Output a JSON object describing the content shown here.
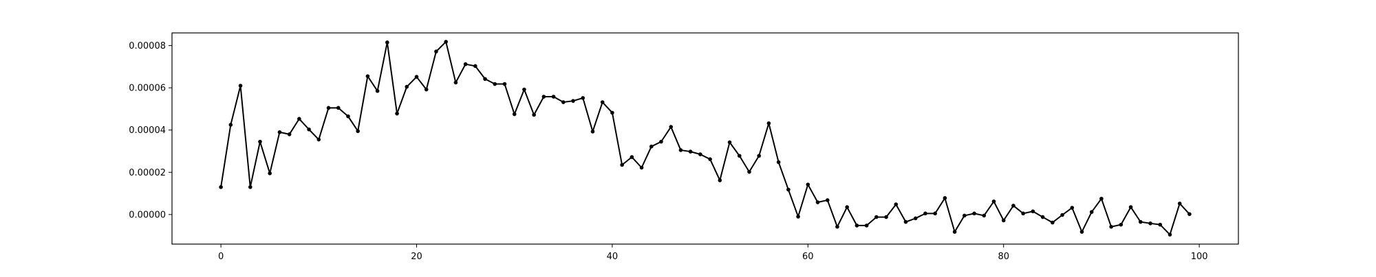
{
  "chart_data": {
    "type": "line",
    "title": "",
    "xlabel": "",
    "ylabel": "",
    "xlim": [
      -5,
      104
    ],
    "ylim": [
      -1.4e-05,
      8.6e-05
    ],
    "x_ticks": [
      0,
      20,
      40,
      60,
      80,
      100
    ],
    "x_tick_labels": [
      "0",
      "20",
      "40",
      "60",
      "80",
      "100"
    ],
    "y_ticks": [
      0.0,
      2e-05,
      4e-05,
      6e-05,
      8e-05
    ],
    "y_tick_labels": [
      "0.00000",
      "0.00002",
      "0.00004",
      "0.00006",
      "0.00008"
    ],
    "grid": false,
    "legend": "none",
    "line_color": "#000000",
    "series": [
      {
        "x": [
          0,
          1,
          2,
          3,
          4,
          5,
          6,
          7,
          8,
          9,
          10,
          11,
          12,
          13,
          14,
          15,
          16,
          17,
          18,
          19,
          20,
          21,
          22,
          23,
          24,
          25,
          26,
          27,
          28,
          29,
          30,
          31,
          32,
          33,
          34,
          35,
          36,
          37,
          38,
          39,
          40,
          41,
          42,
          43,
          44,
          45,
          46,
          47,
          48,
          49,
          50,
          51,
          52,
          53,
          54,
          55,
          56,
          57,
          58,
          59,
          60,
          61,
          62,
          63,
          64,
          65,
          66,
          67,
          68,
          69,
          70,
          71,
          72,
          73,
          74,
          75,
          76,
          77,
          78,
          79,
          80,
          81,
          82,
          83,
          84,
          85,
          86,
          87,
          88,
          89,
          90,
          91,
          92,
          93,
          94,
          95,
          96,
          97,
          98,
          99
        ],
        "values": [
          1.3e-05,
          4.25e-05,
          6.1e-05,
          1.3e-05,
          3.45e-05,
          1.95e-05,
          3.9e-05,
          3.8e-05,
          4.53e-05,
          4.03e-05,
          3.55e-05,
          5.05e-05,
          5.05e-05,
          4.65e-05,
          3.95e-05,
          6.55e-05,
          5.85e-05,
          8.15e-05,
          4.78e-05,
          6.05e-05,
          6.52e-05,
          5.92e-05,
          7.72e-05,
          8.18e-05,
          6.25e-05,
          7.12e-05,
          7.03e-05,
          6.42e-05,
          6.18e-05,
          6.18e-05,
          4.75e-05,
          5.92e-05,
          4.72e-05,
          5.58e-05,
          5.58e-05,
          5.32e-05,
          5.38e-05,
          5.52e-05,
          3.93e-05,
          5.32e-05,
          4.82e-05,
          2.35e-05,
          2.72e-05,
          2.22e-05,
          3.22e-05,
          3.45e-05,
          4.15e-05,
          3.05e-05,
          2.98e-05,
          2.85e-05,
          2.62e-05,
          1.62e-05,
          3.42e-05,
          2.78e-05,
          2.02e-05,
          2.78e-05,
          4.32e-05,
          2.48e-05,
          1.18e-05,
          -1e-06,
          1.42e-05,
          5.8e-06,
          6.8e-06,
          -5.8e-06,
          3.5e-06,
          -5.2e-06,
          -5.2e-06,
          -1.2e-06,
          -1.2e-06,
          4.8e-06,
          -3.5e-06,
          -1.8e-06,
          5e-07,
          5e-07,
          7.8e-06,
          -8.2e-06,
          -5e-07,
          5e-07,
          -5e-07,
          6.2e-06,
          -2.8e-06,
          4.2e-06,
          5e-07,
          1.5e-06,
          -1.2e-06,
          -3.8e-06,
          -2e-07,
          3.2e-06,
          -8.2e-06,
          1.2e-06,
          7.5e-06,
          -5.8e-06,
          -4.8e-06,
          3.5e-06,
          -3.5e-06,
          -4.2e-06,
          -4.8e-06,
          -9.5e-06,
          5.2e-06,
          2e-07
        ]
      }
    ]
  }
}
